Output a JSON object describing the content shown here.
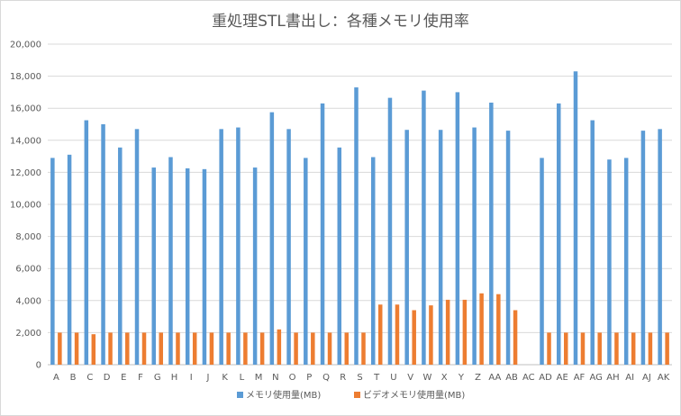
{
  "chart_data": {
    "type": "bar",
    "title": "重処理STL書出し：各種メモリ使用率",
    "xlabel": "",
    "ylabel": "",
    "ylim": [
      0,
      20000
    ],
    "yticks": [
      0,
      2000,
      4000,
      6000,
      8000,
      10000,
      12000,
      14000,
      16000,
      18000,
      20000
    ],
    "ytick_labels": [
      "0",
      "2,000",
      "4,000",
      "6,000",
      "8,000",
      "10,000",
      "12,000",
      "14,000",
      "16,000",
      "18,000",
      "20,000"
    ],
    "grid": true,
    "legend_position": "bottom",
    "categories": [
      "A",
      "B",
      "C",
      "D",
      "E",
      "F",
      "G",
      "H",
      "I",
      "J",
      "K",
      "L",
      "M",
      "N",
      "O",
      "P",
      "Q",
      "R",
      "S",
      "T",
      "U",
      "V",
      "W",
      "X",
      "Y",
      "Z",
      "AA",
      "AB",
      "AC",
      "AD",
      "AE",
      "AF",
      "AG",
      "AH",
      "AI",
      "AJ",
      "AK"
    ],
    "series": [
      {
        "name": "メモリ使用量(MB)",
        "color": "#5b9bd5",
        "values": [
          12900,
          13100,
          15250,
          15000,
          13550,
          14700,
          12300,
          12950,
          12250,
          12200,
          14700,
          14800,
          12300,
          15750,
          14700,
          12900,
          16300,
          13550,
          17300,
          12950,
          16650,
          14650,
          17100,
          14650,
          17000,
          14800,
          16350,
          14600,
          null,
          12900,
          16300,
          18300,
          15250,
          12800,
          12900,
          14600,
          14700
        ]
      },
      {
        "name": "ビデオメモリ使用量(MB)",
        "color": "#ed7d31",
        "values": [
          2000,
          2000,
          1900,
          2000,
          2000,
          2000,
          2000,
          2000,
          2000,
          2000,
          2000,
          2000,
          2000,
          2200,
          2000,
          2000,
          2000,
          2000,
          2000,
          3750,
          3750,
          3400,
          3700,
          4050,
          4050,
          4450,
          4400,
          3400,
          null,
          2000,
          2000,
          2000,
          2000,
          2000,
          2000,
          2000,
          2000
        ]
      }
    ]
  }
}
